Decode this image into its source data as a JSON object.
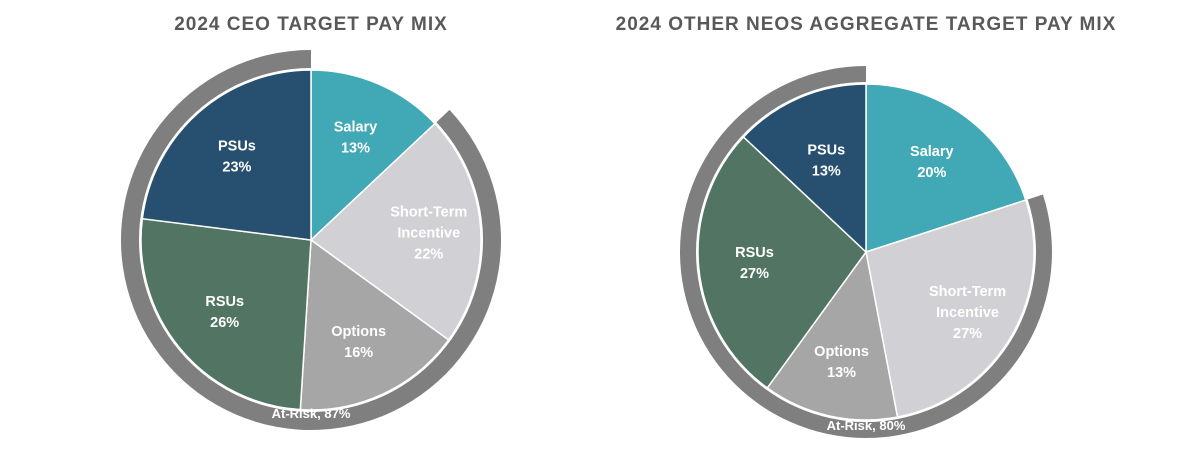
{
  "chart_data": [
    {
      "type": "pie",
      "title": "2024 CEO TARGET PAY MIX",
      "slices": [
        {
          "label": [
            "Salary"
          ],
          "value": 13,
          "value_label": "13%",
          "color": "#41A8B6",
          "at_risk": false
        },
        {
          "label": [
            "Short-Term",
            "Incentive"
          ],
          "value": 22,
          "value_label": "22%",
          "color": "#D1D0D4",
          "at_risk": true
        },
        {
          "label": [
            "Options"
          ],
          "value": 16,
          "value_label": "16%",
          "color": "#A6A6A6",
          "at_risk": true
        },
        {
          "label": [
            "RSUs"
          ],
          "value": 26,
          "value_label": "26%",
          "color": "#527563",
          "at_risk": true
        },
        {
          "label": [
            "PSUs"
          ],
          "value": 23,
          "value_label": "23%",
          "color": "#264F70",
          "at_risk": true
        }
      ],
      "at_risk_label": "At-Risk, 87%",
      "ring_color": "#7F7F7F"
    },
    {
      "type": "pie",
      "title": "2024 OTHER NEOS AGGREGATE TARGET PAY MIX",
      "slices": [
        {
          "label": [
            "Salary"
          ],
          "value": 20,
          "value_label": "20%",
          "color": "#41A8B6",
          "at_risk": false
        },
        {
          "label": [
            "Short-Term",
            "Incentive"
          ],
          "value": 27,
          "value_label": "27%",
          "color": "#D1D0D4",
          "at_risk": true
        },
        {
          "label": [
            "Options"
          ],
          "value": 13,
          "value_label": "13%",
          "color": "#A6A6A6",
          "at_risk": true
        },
        {
          "label": [
            "RSUs"
          ],
          "value": 27,
          "value_label": "27%",
          "color": "#527563",
          "at_risk": true
        },
        {
          "label": [
            "PSUs"
          ],
          "value": 13,
          "value_label": "13%",
          "color": "#264F70",
          "at_risk": true
        }
      ],
      "at_risk_label": "At-Risk, 80%",
      "ring_color": "#7F7F7F"
    }
  ]
}
